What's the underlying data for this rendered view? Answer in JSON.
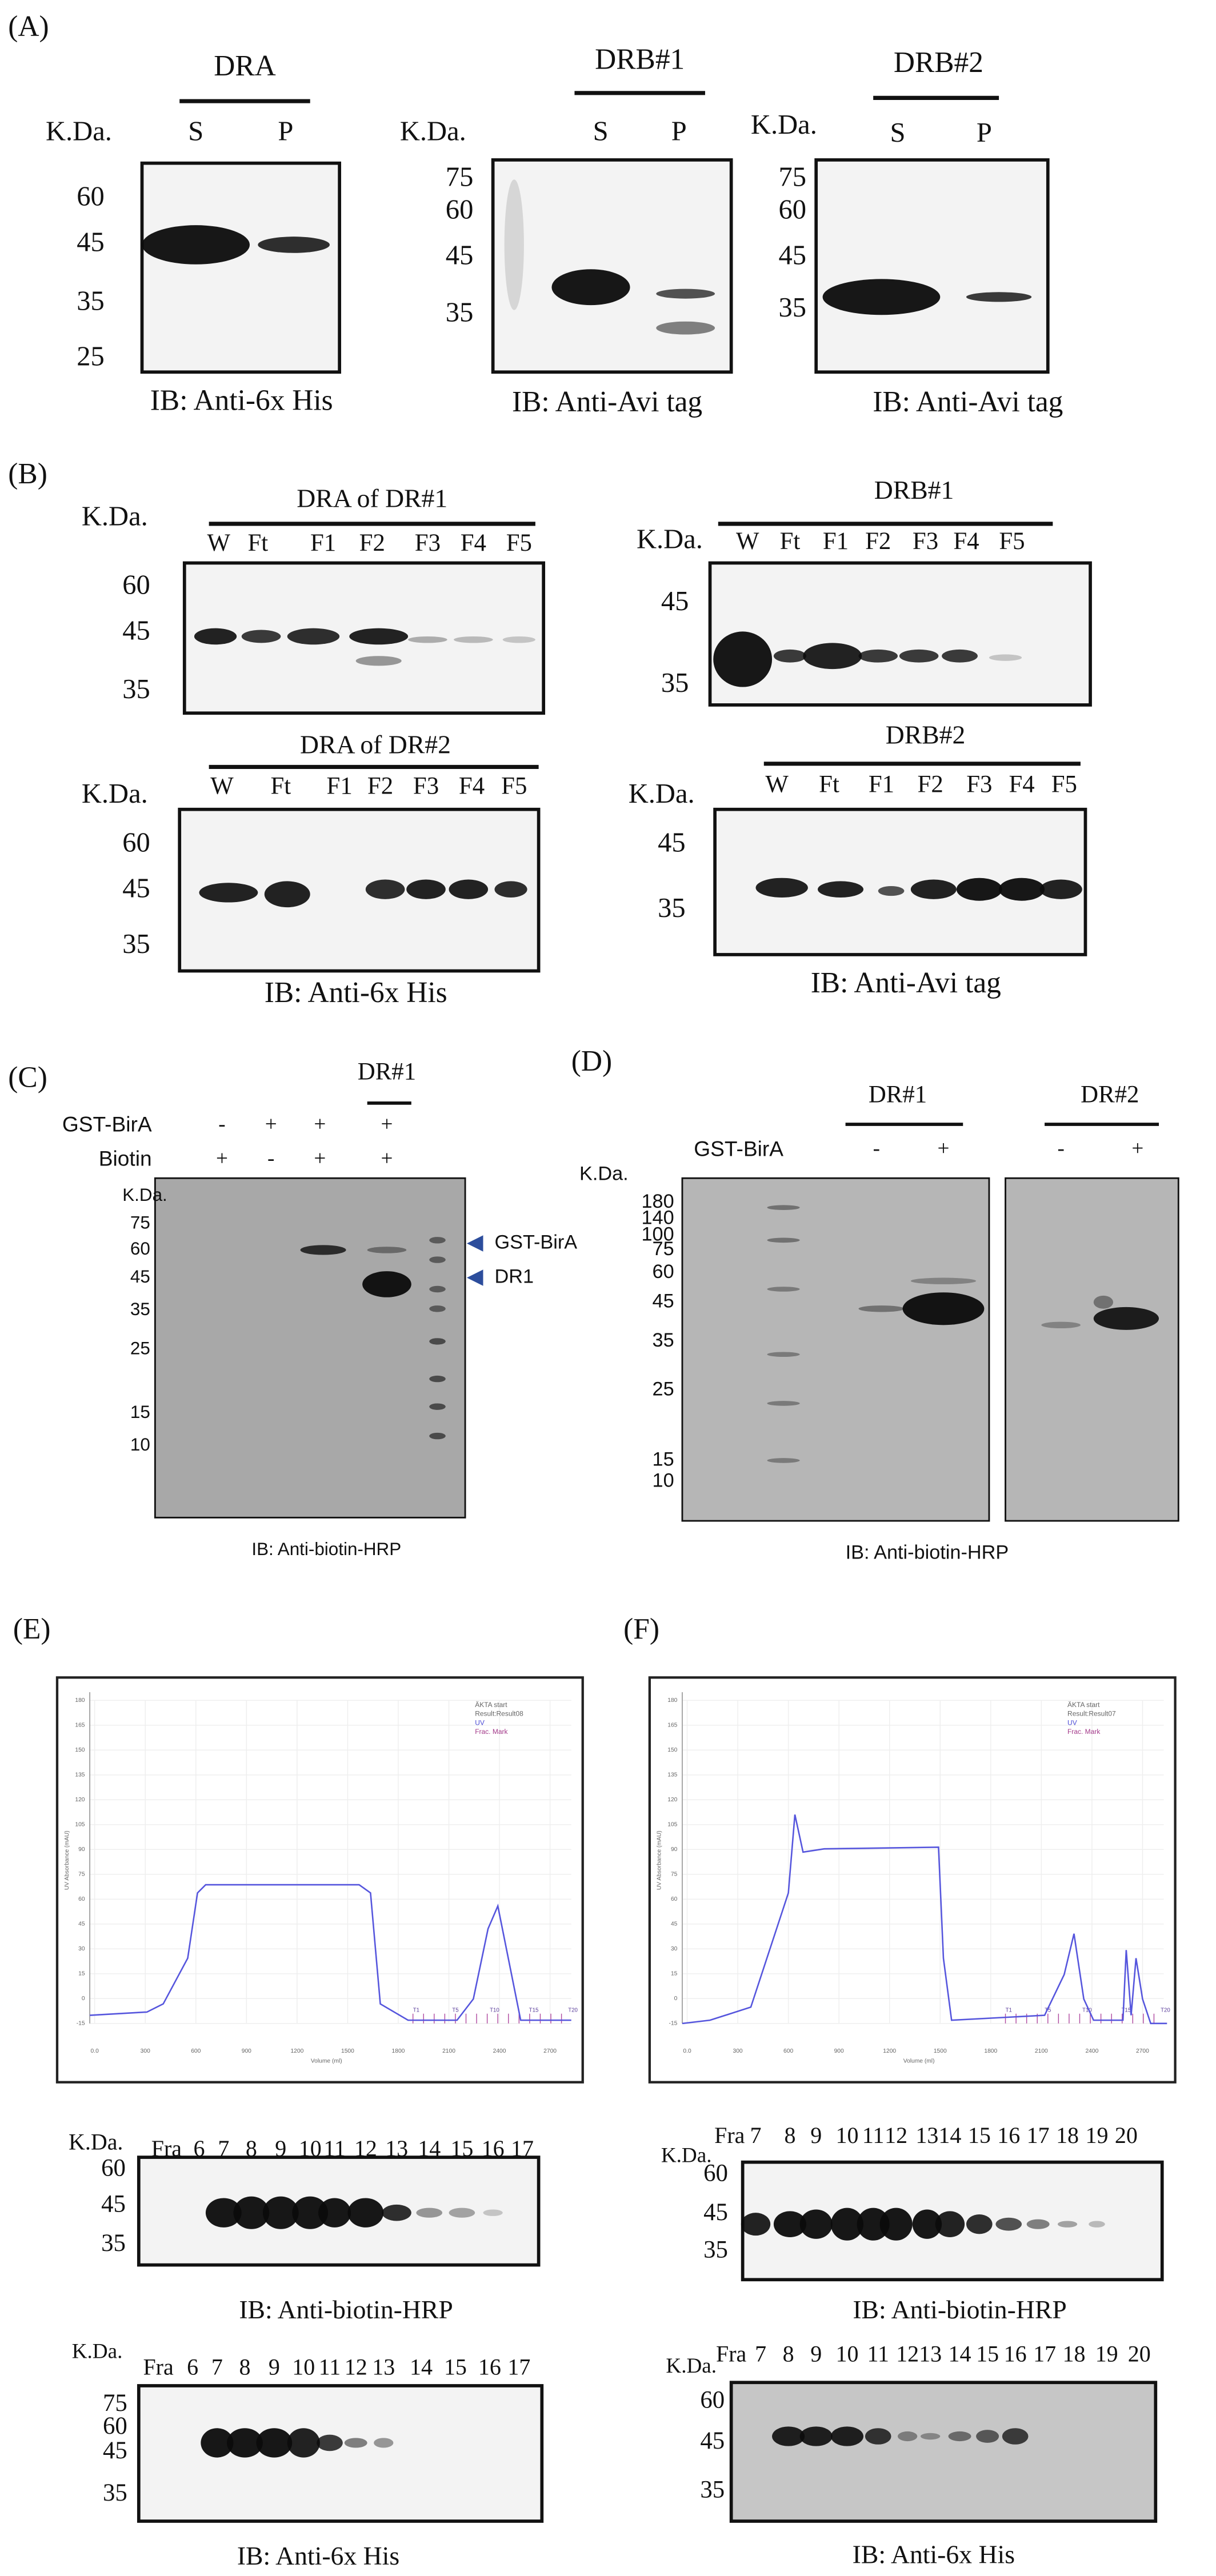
{
  "panel_labels": [
    "(A)",
    "(B)",
    "(C)",
    "(D)",
    "(E)",
    "(F)"
  ],
  "panel_A": {
    "blots": [
      {
        "title": "DRA",
        "kda": "K.Da.",
        "lanes": [
          "S",
          "P"
        ],
        "markers": [
          60,
          45,
          35,
          25
        ],
        "caption": "IB: Anti-6x His"
      },
      {
        "title": "DRB#1",
        "kda": "K.Da.",
        "lanes": [
          "S",
          "P"
        ],
        "markers": [
          75,
          60,
          45,
          35
        ],
        "caption": "IB: Anti-Avi tag"
      },
      {
        "title": "DRB#2",
        "kda": "K.Da.",
        "lanes": [
          "S",
          "P"
        ],
        "markers": [
          75,
          60,
          45,
          35
        ],
        "caption": "IB: Anti-Avi tag"
      }
    ]
  },
  "panel_B": {
    "blots": [
      {
        "title": "DRA of DR#1",
        "kda": "K.Da.",
        "lanes": [
          "W",
          "Ft",
          "F1",
          "F2",
          "F3",
          "F4",
          "F5"
        ],
        "markers": [
          60,
          45,
          35
        ]
      },
      {
        "title": "DRB#1",
        "kda": "K.Da.",
        "lanes": [
          "W",
          "Ft",
          "F1",
          "F2",
          "F3",
          "F4",
          "F5"
        ],
        "markers": [
          45,
          35
        ]
      },
      {
        "title": "DRA of DR#2",
        "kda": "K.Da.",
        "lanes": [
          "W",
          "Ft",
          "F1",
          "F2",
          "F3",
          "F4",
          "F5"
        ],
        "markers": [
          60,
          45,
          35
        ]
      },
      {
        "title": "DRB#2",
        "kda": "K.Da.",
        "lanes": [
          "W",
          "Ft",
          "F1",
          "F2",
          "F3",
          "F4",
          "F5"
        ],
        "markers": [
          45,
          35
        ]
      }
    ],
    "captions": [
      "IB: Anti-6x His",
      "IB: Anti-Avi tag"
    ]
  },
  "panel_C": {
    "group": "DR#1",
    "rows": [
      {
        "label": "GST-BirA",
        "signs": [
          "-",
          "+",
          "+",
          "+"
        ]
      },
      {
        "label": "Biotin",
        "signs": [
          "+",
          "-",
          "+",
          "+"
        ]
      }
    ],
    "kda": "K.Da.",
    "markers": [
      75,
      60,
      45,
      35,
      25,
      15,
      10
    ],
    "arrows": [
      "GST-BirA",
      "DR1"
    ],
    "caption": "IB: Anti-biotin-HRP"
  },
  "panel_D": {
    "groups": [
      "DR#1",
      "DR#2"
    ],
    "row_label": "GST-BirA",
    "signs": [
      "-",
      "+",
      "-",
      "+"
    ],
    "kda": "K.Da.",
    "markers": [
      180,
      140,
      100,
      75,
      60,
      45,
      35,
      25,
      15,
      10
    ],
    "caption": "IB: Anti-biotin-HRP"
  },
  "panel_E": {
    "chromatogram": {
      "legend": [
        "ÄKTA start",
        "Result:Result08",
        "UV",
        "Frac. Mark"
      ],
      "y_label": "UV Absorbance (mAU)",
      "x_label": "Volume (ml)",
      "yticks": [
        180,
        165,
        150,
        135,
        120,
        105,
        90,
        75,
        60,
        45,
        30,
        15,
        0,
        -15
      ],
      "xticks": [
        "0.0",
        "300",
        "600",
        "900",
        "1200",
        "1500",
        "1800",
        "2100",
        "2400",
        "2700"
      ],
      "fractions": [
        "T1",
        "T5",
        "T10",
        "T15",
        "T20"
      ]
    },
    "blots": [
      {
        "kda": "K.Da.",
        "fra": "Fra",
        "lanes": [
          "6",
          "7",
          "8",
          "9",
          "10",
          "11",
          "12",
          "13",
          "14",
          "15",
          "16",
          "17"
        ],
        "markers": [
          60,
          45,
          35
        ],
        "caption": "IB: Anti-biotin-HRP"
      },
      {
        "kda": "K.Da.",
        "fra": "Fra",
        "lanes": [
          "6",
          "7",
          "8",
          "9",
          "10",
          "11",
          "12",
          "13",
          "14",
          "15",
          "16",
          "17"
        ],
        "markers": [
          75,
          60,
          45,
          35
        ],
        "caption": "IB: Anti-6x His"
      }
    ]
  },
  "panel_F": {
    "chromatogram": {
      "legend": [
        "ÄKTA start",
        "Result:Result07",
        "UV",
        "Frac. Mark"
      ],
      "y_label": "UV Absorbance (mAU)",
      "x_label": "Volume (ml)",
      "yticks": [
        180,
        165,
        150,
        135,
        120,
        105,
        90,
        75,
        60,
        45,
        30,
        15,
        0,
        -15
      ],
      "xticks": [
        "0.0",
        "300",
        "600",
        "900",
        "1200",
        "1500",
        "1800",
        "2100",
        "2400",
        "2700"
      ],
      "fractions": [
        "T1",
        "T5",
        "T10",
        "T15",
        "T20"
      ]
    },
    "blots": [
      {
        "kda": "K.Da.",
        "fra": "Fra",
        "lanes": [
          "7",
          "8",
          "9",
          "10",
          "11",
          "12",
          "13",
          "14",
          "15",
          "16",
          "17",
          "18",
          "19",
          "20"
        ],
        "markers": [
          60,
          45,
          35
        ],
        "caption": "IB: Anti-biotin-HRP"
      },
      {
        "kda": "K.Da.",
        "fra": "Fra",
        "lanes": [
          "7",
          "8",
          "9",
          "10",
          "11",
          "12",
          "13",
          "14",
          "15",
          "16",
          "17",
          "18",
          "19",
          "20"
        ],
        "markers": [
          60,
          45,
          35
        ],
        "caption": "IB: Anti-6x His"
      }
    ]
  }
}
